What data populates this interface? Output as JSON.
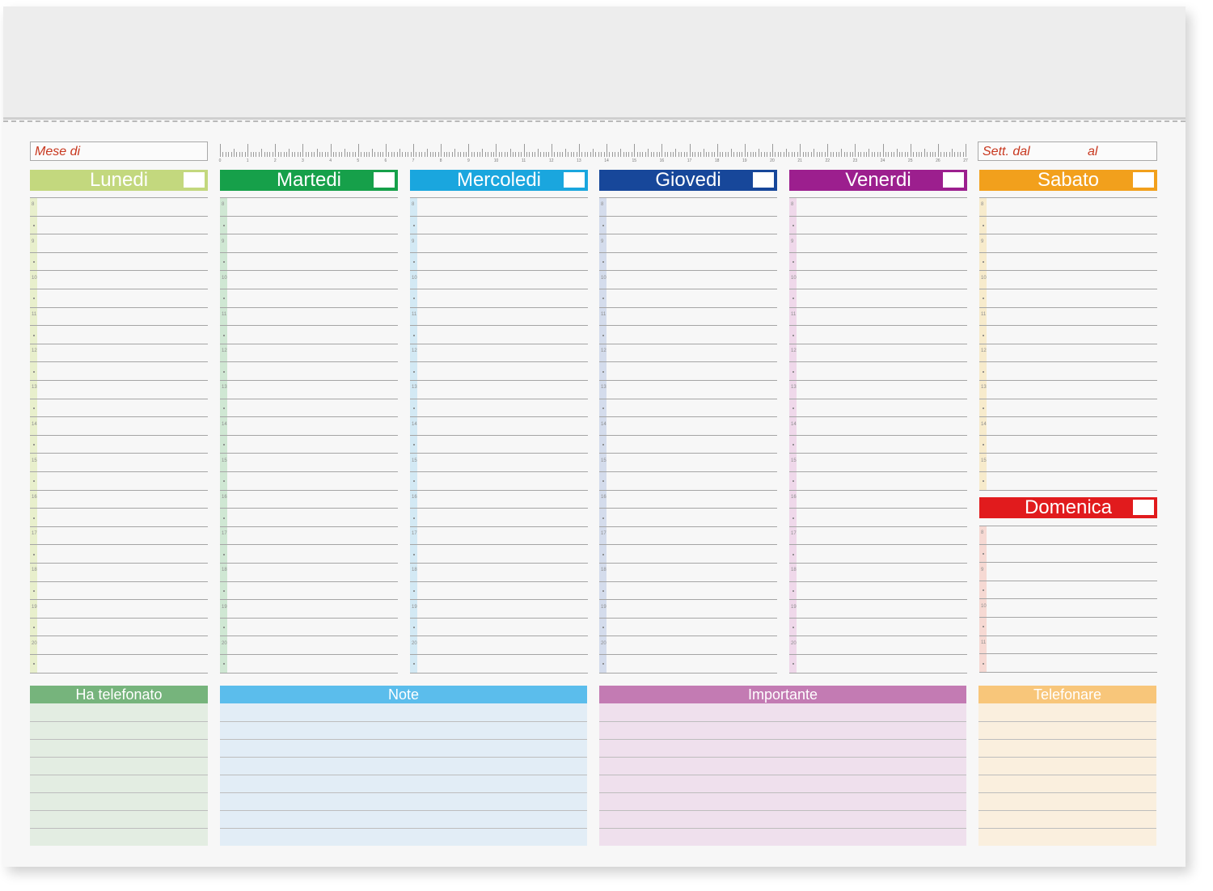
{
  "header": {
    "month_label": "Mese di",
    "week_from_label": "Sett. dal",
    "week_to_label": "al"
  },
  "ruler": {
    "labels": [
      "0",
      "1",
      "2",
      "3",
      "4",
      "5",
      "6",
      "7",
      "8",
      "9",
      "10",
      "11",
      "12",
      "13",
      "14",
      "15",
      "16",
      "17",
      "18",
      "19",
      "20",
      "21",
      "22",
      "23",
      "24",
      "25",
      "26",
      "27"
    ]
  },
  "days": [
    {
      "label": "Lunedi",
      "color": "#c3d87e",
      "strip": "#e8efcc",
      "hours": [
        "8",
        "9",
        "10",
        "11",
        "12",
        "13",
        "14",
        "15",
        "16",
        "17",
        "18",
        "19",
        "20"
      ]
    },
    {
      "label": "Martedi",
      "color": "#16a04a",
      "strip": "#cfe7d3",
      "hours": [
        "8",
        "9",
        "10",
        "11",
        "12",
        "13",
        "14",
        "15",
        "16",
        "17",
        "18",
        "19",
        "20"
      ]
    },
    {
      "label": "Mercoledi",
      "color": "#1aa6de",
      "strip": "#d3e9f4",
      "hours": [
        "8",
        "9",
        "10",
        "11",
        "12",
        "13",
        "14",
        "15",
        "16",
        "17",
        "18",
        "19",
        "20"
      ]
    },
    {
      "label": "Giovedi",
      "color": "#17479a",
      "strip": "#d4dcec",
      "hours": [
        "8",
        "9",
        "10",
        "11",
        "12",
        "13",
        "14",
        "15",
        "16",
        "17",
        "18",
        "19",
        "20"
      ]
    },
    {
      "label": "Venerdi",
      "color": "#9c1f8e",
      "strip": "#efd8ea",
      "hours": [
        "8",
        "9",
        "10",
        "11",
        "12",
        "13",
        "14",
        "15",
        "16",
        "17",
        "18",
        "19",
        "20"
      ]
    },
    {
      "label": "Sabato",
      "color": "#f2a01c",
      "strip": "#f7ebcc",
      "hours": [
        "8",
        "9",
        "10",
        "11",
        "12",
        "13",
        "14",
        "15"
      ]
    }
  ],
  "sunday": {
    "label": "Domenica",
    "color": "#e11b1d",
    "strip": "#f6d9d3",
    "hours": [
      "8",
      "9",
      "10",
      "11"
    ]
  },
  "bottom_sections": [
    {
      "label": "Ha telefonato",
      "color": "#76b47c",
      "bg": "#e3ede2"
    },
    {
      "label": "Note",
      "color": "#5bbdec",
      "bg": "#e2edf6"
    },
    {
      "label": "Importante",
      "color": "#c37bb3",
      "bg": "#efe0ed"
    },
    {
      "label": "Telefonare",
      "color": "#f8c67a",
      "bg": "#faefde"
    }
  ]
}
